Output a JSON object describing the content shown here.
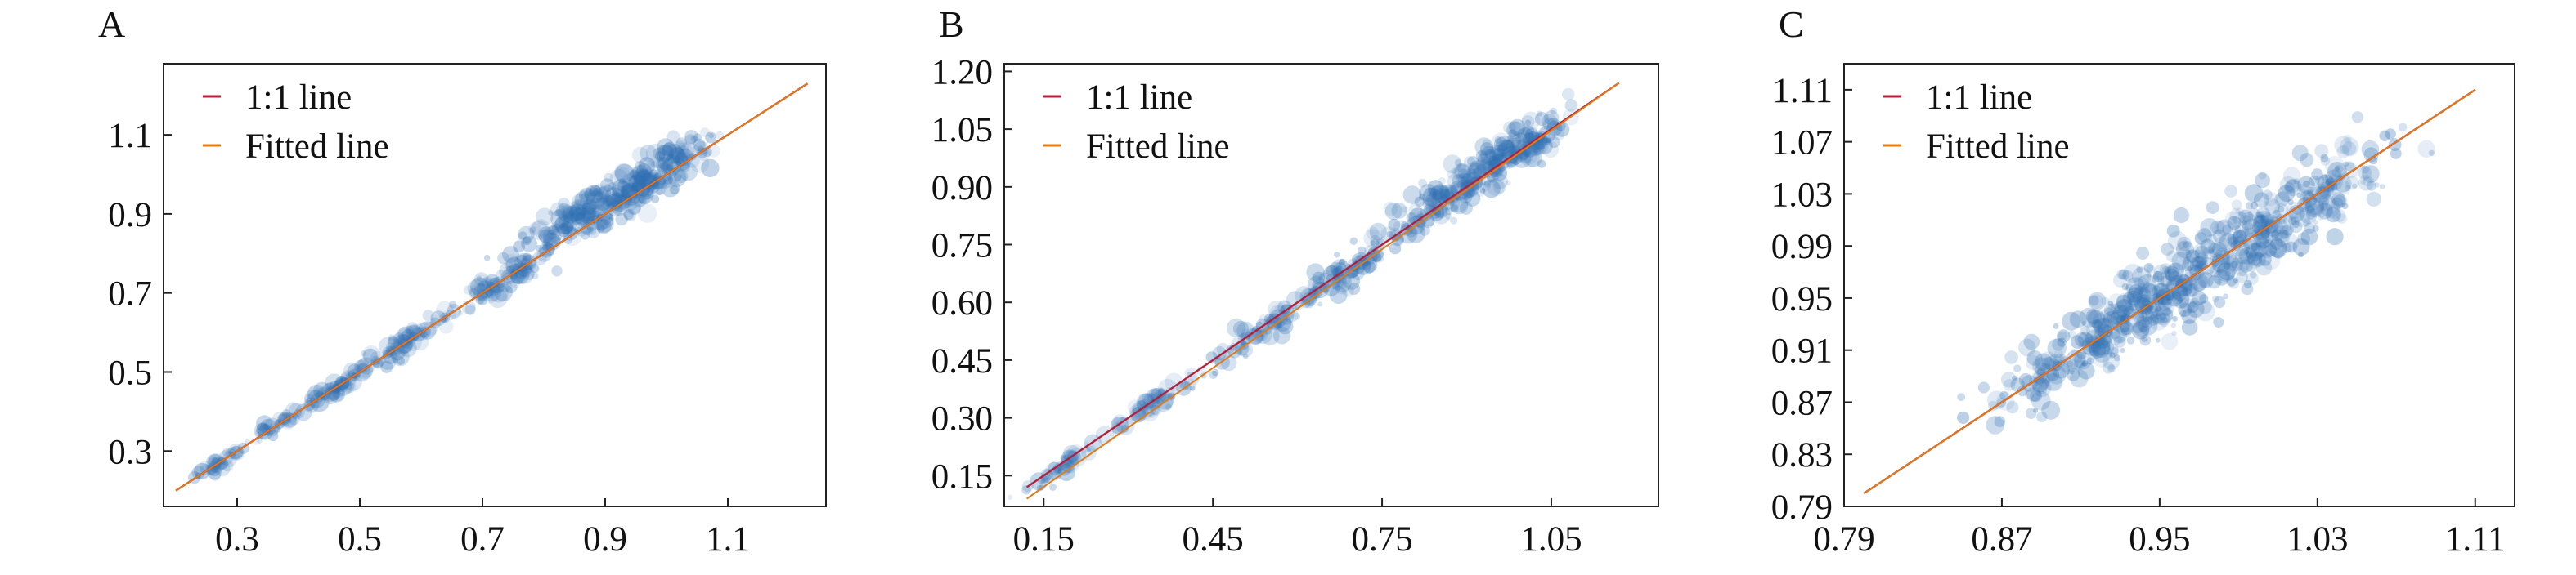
{
  "chart_data": [
    {
      "panel_label": "A",
      "type": "scatter",
      "xlim": [
        0.18,
        1.26
      ],
      "ylim": [
        0.16,
        1.28
      ],
      "x_ticks": [
        0.3,
        0.5,
        0.7,
        0.9,
        1.1
      ],
      "x_tick_labels": [
        "0.3",
        "0.5",
        "0.7",
        "0.9",
        "1.1"
      ],
      "y_ticks": [
        0.3,
        0.5,
        0.7,
        0.9,
        1.1
      ],
      "y_tick_labels": [
        "0.3",
        "0.5",
        "0.7",
        "0.9",
        "1.1"
      ],
      "grid": false,
      "legend_position": "top-left",
      "lines": [
        {
          "name": "1:1 line",
          "color": "#b3203a",
          "x": [
            0.2,
            1.23
          ],
          "y": [
            0.2,
            1.23
          ]
        },
        {
          "name": "Fitted line",
          "color": "#e07b18",
          "x": [
            0.2,
            1.23
          ],
          "y": [
            0.2,
            1.23
          ]
        }
      ],
      "scatter_color": "#2f6fb3",
      "scatter_clusters": [
        {
          "x": 0.27,
          "y": 0.27,
          "spread_x": 0.02,
          "spread_y": 0.016,
          "count": 35
        },
        {
          "x": 0.36,
          "y": 0.36,
          "spread_x": 0.025,
          "spread_y": 0.016,
          "count": 35
        },
        {
          "x": 0.46,
          "y": 0.46,
          "spread_x": 0.028,
          "spread_y": 0.018,
          "count": 50
        },
        {
          "x": 0.58,
          "y": 0.58,
          "spread_x": 0.035,
          "spread_y": 0.025,
          "count": 75
        },
        {
          "x": 0.72,
          "y": 0.72,
          "spread_x": 0.045,
          "spread_y": 0.03,
          "count": 80
        },
        {
          "x": 0.85,
          "y": 0.89,
          "spread_x": 0.05,
          "spread_y": 0.045,
          "count": 150
        },
        {
          "x": 0.97,
          "y": 0.99,
          "spread_x": 0.05,
          "spread_y": 0.05,
          "count": 210
        }
      ]
    },
    {
      "panel_label": "B",
      "type": "scatter",
      "xlim": [
        0.08,
        1.24
      ],
      "ylim": [
        0.07,
        1.22
      ],
      "x_ticks": [
        0.15,
        0.45,
        0.75,
        1.05
      ],
      "x_tick_labels": [
        "0.15",
        "0.45",
        "0.75",
        "1.05"
      ],
      "y_ticks": [
        0.15,
        0.3,
        0.45,
        0.6,
        0.75,
        0.9,
        1.05,
        1.2
      ],
      "y_tick_labels": [
        "0.15",
        "0.30",
        "0.45",
        "0.60",
        "0.75",
        "0.90",
        "1.05",
        "1.20"
      ],
      "grid": false,
      "legend_position": "top-left",
      "lines": [
        {
          "name": "1:1 line",
          "color": "#b3203a",
          "x": [
            0.12,
            1.17
          ],
          "y": [
            0.12,
            1.17
          ]
        },
        {
          "name": "Fitted line",
          "color": "#e07b18",
          "x": [
            0.12,
            1.17
          ],
          "y": [
            0.09,
            1.17
          ]
        }
      ],
      "scatter_color": "#2f6fb3",
      "scatter_clusters": [
        {
          "x": 0.18,
          "y": 0.17,
          "spread_x": 0.03,
          "spread_y": 0.02,
          "count": 40
        },
        {
          "x": 0.35,
          "y": 0.34,
          "spread_x": 0.04,
          "spread_y": 0.025,
          "count": 55
        },
        {
          "x": 0.52,
          "y": 0.51,
          "spread_x": 0.05,
          "spread_y": 0.03,
          "count": 70
        },
        {
          "x": 0.69,
          "y": 0.68,
          "spread_x": 0.05,
          "spread_y": 0.035,
          "count": 90
        },
        {
          "x": 0.85,
          "y": 0.86,
          "spread_x": 0.05,
          "spread_y": 0.045,
          "count": 130
        },
        {
          "x": 0.98,
          "y": 0.99,
          "spread_x": 0.05,
          "spread_y": 0.05,
          "count": 190
        }
      ]
    },
    {
      "panel_label": "C",
      "type": "scatter",
      "xlim": [
        0.79,
        1.13
      ],
      "ylim": [
        0.79,
        1.13
      ],
      "x_ticks": [
        0.79,
        0.87,
        0.95,
        1.03,
        1.11
      ],
      "x_tick_labels": [
        "0.79",
        "0.87",
        "0.95",
        "1.03",
        "1.11"
      ],
      "y_ticks": [
        0.79,
        0.83,
        0.87,
        0.91,
        0.95,
        0.99,
        1.03,
        1.07,
        1.11
      ],
      "y_tick_labels": [
        "0.79",
        "0.83",
        "0.87",
        "0.91",
        "0.95",
        "0.99",
        "1.03",
        "1.07",
        "1.11"
      ],
      "grid": false,
      "legend_position": "top-left",
      "lines": [
        {
          "name": "1:1 line",
          "color": "#b3203a",
          "x": [
            0.8,
            1.11
          ],
          "y": [
            0.8,
            1.11
          ]
        },
        {
          "name": "Fitted line",
          "color": "#e07b18",
          "x": [
            0.8,
            1.11
          ],
          "y": [
            0.8,
            1.11
          ]
        }
      ],
      "scatter_color": "#2f6fb3",
      "scatter_clusters": [
        {
          "x": 0.91,
          "y": 0.91,
          "spread_x": 0.025,
          "spread_y": 0.02,
          "count": 140
        },
        {
          "x": 0.95,
          "y": 0.95,
          "spread_x": 0.03,
          "spread_y": 0.025,
          "count": 220
        },
        {
          "x": 0.99,
          "y": 0.99,
          "spread_x": 0.03,
          "spread_y": 0.028,
          "count": 200
        },
        {
          "x": 1.03,
          "y": 1.03,
          "spread_x": 0.025,
          "spread_y": 0.025,
          "count": 120
        }
      ]
    }
  ]
}
